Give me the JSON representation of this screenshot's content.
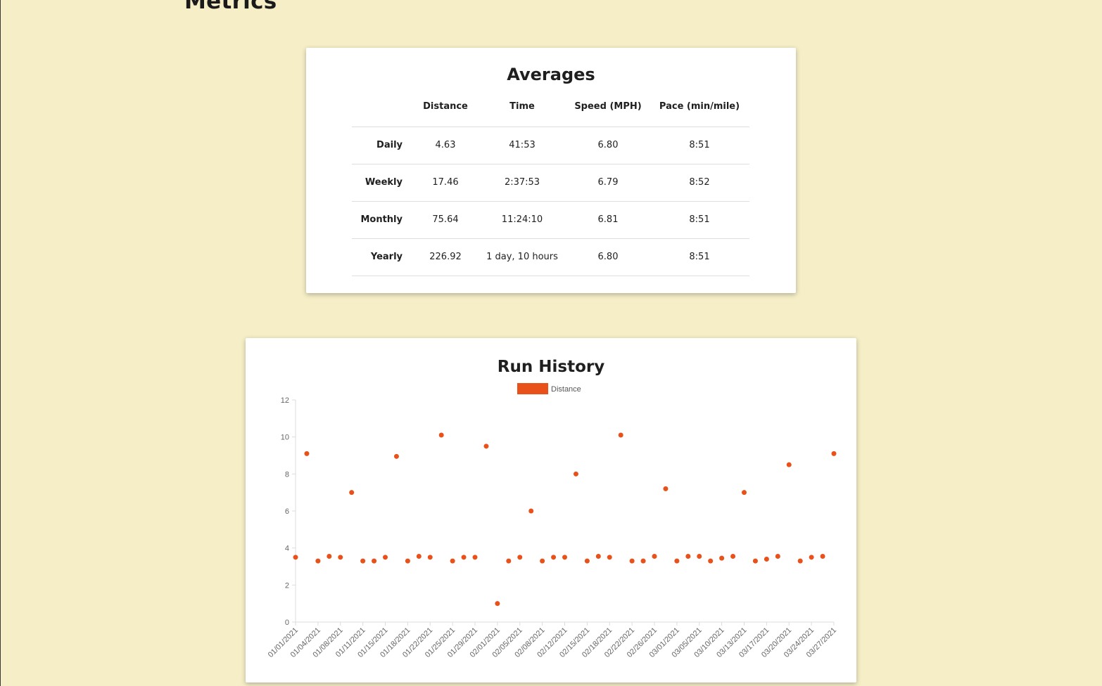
{
  "page": {
    "title": "Metrics"
  },
  "averages": {
    "title": "Averages",
    "columns": [
      "Distance",
      "Time",
      "Speed (MPH)",
      "Pace (min/mile)"
    ],
    "rows": [
      {
        "label": "Daily",
        "distance": "4.63",
        "time": "41:53",
        "speed": "6.80",
        "pace": "8:51"
      },
      {
        "label": "Weekly",
        "distance": "17.46",
        "time": "2:37:53",
        "speed": "6.79",
        "pace": "8:52"
      },
      {
        "label": "Monthly",
        "distance": "75.64",
        "time": "11:24:10",
        "speed": "6.81",
        "pace": "8:51"
      },
      {
        "label": "Yearly",
        "distance": "226.92",
        "time": "1 day, 10 hours",
        "speed": "6.80",
        "pace": "8:51"
      }
    ]
  },
  "colors": {
    "accent": "#e8521a",
    "background": "#f5eec6"
  },
  "chart_data": {
    "type": "scatter",
    "title": "Run History",
    "xlabel": "",
    "ylabel": "",
    "legend": "top-center",
    "grid": false,
    "ylim": [
      0,
      12
    ],
    "yticks": [
      "0",
      "2",
      "4",
      "6",
      "8",
      "10",
      "12"
    ],
    "xticks": [
      "01/01/2021",
      "01/04/2021",
      "01/08/2021",
      "01/11/2021",
      "01/15/2021",
      "01/18/2021",
      "01/22/2021",
      "01/25/2021",
      "01/29/2021",
      "02/01/2021",
      "02/05/2021",
      "02/08/2021",
      "02/12/2021",
      "02/15/2021",
      "02/18/2021",
      "02/22/2021",
      "02/26/2021",
      "03/01/2021",
      "03/05/2021",
      "03/10/2021",
      "03/13/2021",
      "03/17/2021",
      "03/20/2021",
      "03/24/2021",
      "03/27/2021"
    ],
    "series": [
      {
        "name": "Distance",
        "color": "#e8521a",
        "values": [
          3.5,
          9.1,
          3.3,
          3.55,
          3.5,
          7.0,
          3.3,
          3.3,
          3.5,
          8.95,
          3.3,
          3.55,
          3.5,
          10.1,
          3.3,
          3.5,
          3.5,
          9.5,
          1.0,
          3.3,
          3.5,
          6.0,
          3.3,
          3.5,
          3.5,
          8.0,
          3.3,
          3.55,
          3.5,
          10.1,
          3.3,
          3.3,
          3.55,
          7.2,
          3.3,
          3.55,
          3.55,
          3.3,
          3.45,
          3.55,
          7.0,
          3.3,
          3.4,
          3.55,
          8.5,
          3.3,
          3.5,
          3.55,
          9.1
        ]
      }
    ]
  }
}
